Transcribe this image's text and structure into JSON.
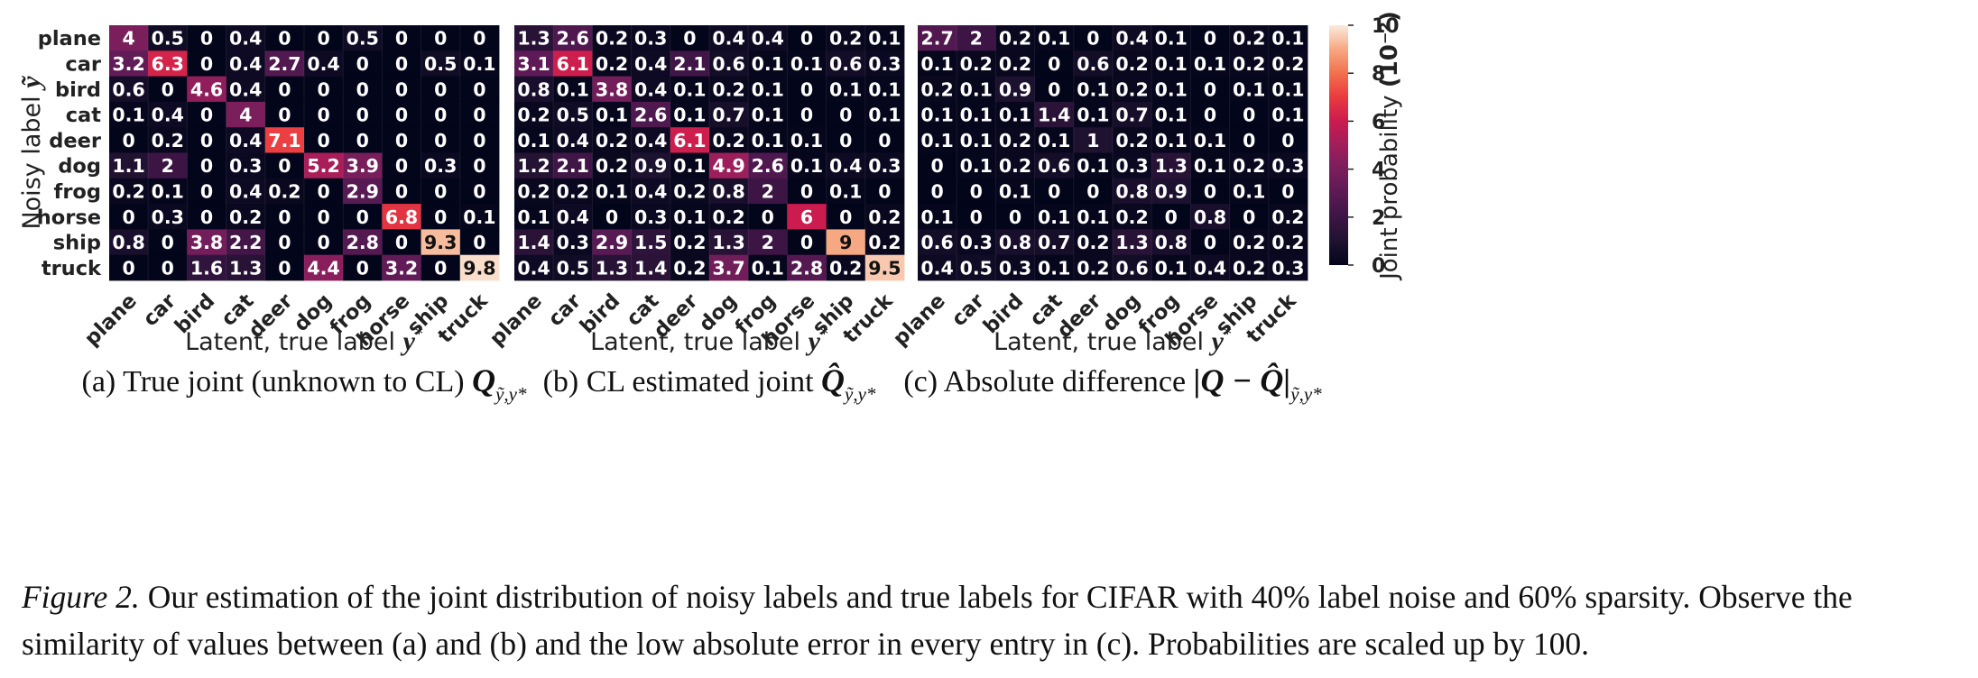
{
  "chart_data": [
    {
      "type": "heatmap",
      "panel_caption": "(a) True joint (unknown to CL) ",
      "panel_math": "Q",
      "ylabel": "Noisy label ",
      "ylabel_math": "ỹ",
      "xlabel": "Latent, true label ",
      "xlabel_math": "y",
      "x_categories": [
        "plane",
        "car",
        "bird",
        "cat",
        "deer",
        "dog",
        "frog",
        "horse",
        "ship",
        "truck"
      ],
      "y_categories": [
        "plane",
        "car",
        "bird",
        "cat",
        "deer",
        "dog",
        "frog",
        "horse",
        "ship",
        "truck"
      ],
      "values": [
        [
          4,
          0.5,
          0,
          0.4,
          0,
          0,
          0.5,
          0,
          0,
          0
        ],
        [
          3.2,
          6.3,
          0,
          0.4,
          2.7,
          0.4,
          0,
          0,
          0.5,
          0.1
        ],
        [
          0.6,
          0,
          4.6,
          0.4,
          0,
          0,
          0,
          0,
          0,
          0
        ],
        [
          0.1,
          0.4,
          0,
          4,
          0,
          0,
          0,
          0,
          0,
          0
        ],
        [
          0,
          0.2,
          0,
          0.4,
          7.1,
          0,
          0,
          0,
          0,
          0
        ],
        [
          1.1,
          2,
          0,
          0.3,
          0,
          5.2,
          3.9,
          0,
          0.3,
          0
        ],
        [
          0.2,
          0.1,
          0,
          0.4,
          0.2,
          0,
          2.9,
          0,
          0,
          0
        ],
        [
          0,
          0.3,
          0,
          0.2,
          0,
          0,
          0,
          6.8,
          0,
          0.1
        ],
        [
          0.8,
          0,
          3.8,
          2.2,
          0,
          0,
          2.8,
          0,
          9.3,
          0
        ],
        [
          0,
          0,
          1.6,
          1.3,
          0,
          4.4,
          0,
          3.2,
          0,
          9.8
        ]
      ],
      "vmin": 0,
      "vmax": 10
    },
    {
      "type": "heatmap",
      "panel_caption": "(b) CL estimated joint ",
      "panel_math": "Q̂",
      "xlabel": "Latent, true label ",
      "xlabel_math": "y",
      "x_categories": [
        "plane",
        "car",
        "bird",
        "cat",
        "deer",
        "dog",
        "frog",
        "horse",
        "ship",
        "truck"
      ],
      "values": [
        [
          1.3,
          2.6,
          0.2,
          0.3,
          0,
          0.4,
          0.4,
          0,
          0.2,
          0.1
        ],
        [
          3.1,
          6.1,
          0.2,
          0.4,
          2.1,
          0.6,
          0.1,
          0.1,
          0.6,
          0.3
        ],
        [
          0.8,
          0.1,
          3.8,
          0.4,
          0.1,
          0.2,
          0.1,
          0,
          0.1,
          0.1
        ],
        [
          0.2,
          0.5,
          0.1,
          2.6,
          0.1,
          0.7,
          0.1,
          0,
          0,
          0.1
        ],
        [
          0.1,
          0.4,
          0.2,
          0.4,
          6.1,
          0.2,
          0.1,
          0.1,
          0,
          0
        ],
        [
          1.2,
          2.1,
          0.2,
          0.9,
          0.1,
          4.9,
          2.6,
          0.1,
          0.4,
          0.3
        ],
        [
          0.2,
          0.2,
          0.1,
          0.4,
          0.2,
          0.8,
          2,
          0,
          0.1,
          0
        ],
        [
          0.1,
          0.4,
          0,
          0.3,
          0.1,
          0.2,
          0,
          6,
          0,
          0.2
        ],
        [
          1.4,
          0.3,
          2.9,
          1.5,
          0.2,
          1.3,
          2,
          0,
          9,
          0.2
        ],
        [
          0.4,
          0.5,
          1.3,
          1.4,
          0.2,
          3.7,
          0.1,
          2.8,
          0.2,
          9.5
        ]
      ],
      "vmin": 0,
      "vmax": 10
    },
    {
      "type": "heatmap",
      "panel_caption": "(c) Absolute difference ",
      "panel_math": "|Q − Q̂|",
      "xlabel": "Latent, true label ",
      "xlabel_math": "y",
      "x_categories": [
        "plane",
        "car",
        "bird",
        "cat",
        "deer",
        "dog",
        "frog",
        "horse",
        "ship",
        "truck"
      ],
      "values": [
        [
          2.7,
          2,
          0.2,
          0.1,
          0,
          0.4,
          0.1,
          0,
          0.2,
          0.1
        ],
        [
          0.1,
          0.2,
          0.2,
          0,
          0.6,
          0.2,
          0.1,
          0.1,
          0.2,
          0.2
        ],
        [
          0.2,
          0.1,
          0.9,
          0,
          0.1,
          0.2,
          0.1,
          0,
          0.1,
          0.1
        ],
        [
          0.1,
          0.1,
          0.1,
          1.4,
          0.1,
          0.7,
          0.1,
          0,
          0,
          0.1
        ],
        [
          0.1,
          0.1,
          0.2,
          0.1,
          1,
          0.2,
          0.1,
          0.1,
          0,
          0
        ],
        [
          0,
          0.1,
          0.2,
          0.6,
          0.1,
          0.3,
          1.3,
          0.1,
          0.2,
          0.3
        ],
        [
          0,
          0,
          0.1,
          0,
          0,
          0.8,
          0.9,
          0,
          0.1,
          0
        ],
        [
          0.1,
          0,
          0,
          0.1,
          0.1,
          0.2,
          0,
          0.8,
          0,
          0.2
        ],
        [
          0.6,
          0.3,
          0.8,
          0.7,
          0.2,
          1.3,
          0.8,
          0,
          0.2,
          0.2
        ],
        [
          0.4,
          0.5,
          0.3,
          0.1,
          0.2,
          0.6,
          0.1,
          0.4,
          0.2,
          0.3
        ]
      ],
      "vmin": 0,
      "vmax": 10
    }
  ],
  "colorbar": {
    "label": "Joint probability ",
    "label_math": "(10⁻²)",
    "ticks": [
      0,
      2,
      4,
      6,
      8,
      10
    ],
    "colormap": "rocket"
  },
  "caption": {
    "label": "Figure 2.",
    "text": " Our estimation of the joint distribution of noisy labels and true labels for CIFAR with 40% label noise and 60% sparsity. Observe the similarity of values between (a) and (b) and the low absolute error in every entry in (c). Probabilities are scaled up by 100."
  }
}
